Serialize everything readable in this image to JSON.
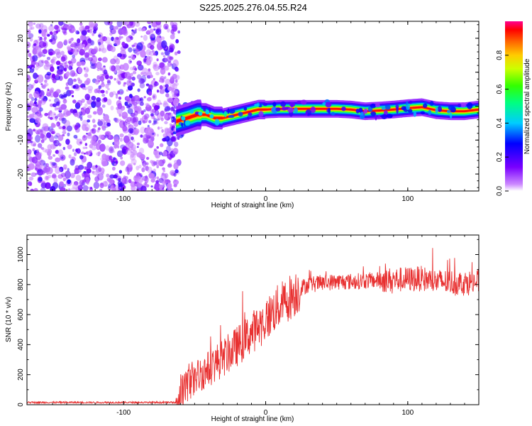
{
  "title": "S225.2025.276.04.55.R24",
  "chart_data": [
    {
      "type": "heatmap",
      "xlabel": "Height of straight line (km)",
      "ylabel": "Frequency (Hz)",
      "xlim": [
        -168,
        150
      ],
      "ylim": [
        -25,
        25
      ],
      "xticks": [
        -100,
        0,
        100
      ],
      "yticks": [
        -20,
        -10,
        0,
        10,
        20
      ],
      "noise_region_x": [
        -168,
        -63
      ],
      "ridge": {
        "x": [
          -63,
          -55,
          -48,
          -42,
          -36,
          -30,
          -25,
          -20,
          -15,
          -10,
          -5,
          0,
          10,
          20,
          30,
          40,
          50,
          60,
          70,
          80,
          90,
          100,
          110,
          120,
          130,
          140,
          150
        ],
        "freq": [
          -4.5,
          -3.5,
          -2.5,
          -2.5,
          -3.5,
          -3.5,
          -3,
          -2.5,
          -2,
          -1.5,
          -1,
          -1,
          -0.8,
          -0.8,
          -0.8,
          -0.8,
          -0.8,
          -1,
          -1.5,
          -1.3,
          -1,
          -0.6,
          -0.3,
          -1.2,
          -1.5,
          -1.5,
          -1
        ]
      },
      "colorbar": {
        "label": "Normalized spectral amplitude",
        "ticks": [
          0.0,
          0.2,
          0.4,
          0.6,
          0.8
        ],
        "range": [
          0,
          1
        ]
      }
    },
    {
      "type": "line",
      "xlabel": "Height of straight line (km)",
      "ylabel": "SNR (10 * v/v)",
      "xlim": [
        -168,
        150
      ],
      "ylim": [
        0,
        1130
      ],
      "xticks": [
        -100,
        0,
        100
      ],
      "yticks": [
        0,
        200,
        400,
        600,
        800,
        1000
      ],
      "line_color": "#e83030",
      "envelope": {
        "x": [
          -168,
          -63,
          -55,
          -50,
          -45,
          -40,
          -35,
          -30,
          -25,
          -20,
          -15,
          -10,
          -5,
          0,
          5,
          10,
          15,
          20,
          25,
          30,
          40,
          50,
          60,
          70,
          80,
          90,
          100,
          110,
          115,
          120,
          130,
          140,
          150
        ],
        "y": [
          15,
          15,
          130,
          180,
          210,
          240,
          280,
          310,
          350,
          390,
          430,
          480,
          520,
          560,
          620,
          660,
          700,
          740,
          780,
          800,
          810,
          820,
          820,
          825,
          830,
          830,
          835,
          840,
          830,
          820,
          815,
          810,
          820
        ]
      }
    }
  ]
}
